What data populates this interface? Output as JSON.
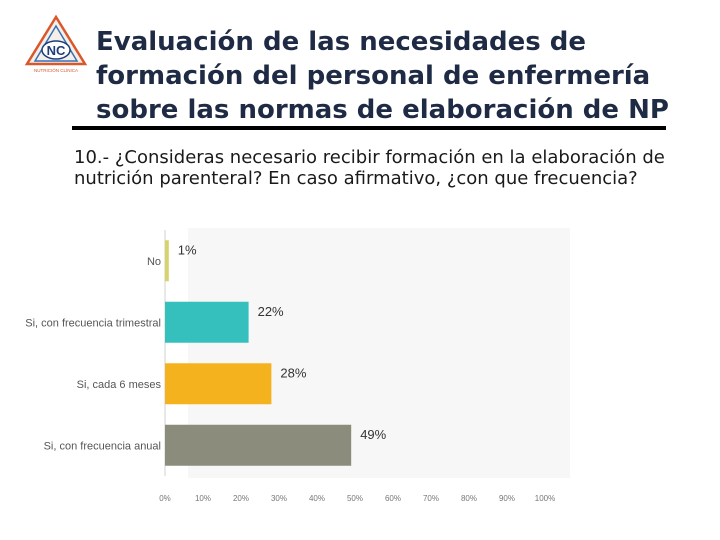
{
  "slide": {
    "title": "Evaluación de las necesidades de formación del personal de enfermería sobre las normas de elaboración de NP",
    "question": "10.- ¿Consideras necesario recibir formación en la elaboración de nutrición parenteral? En caso afirmativo, ¿con que frecuencia?",
    "logo": {
      "monogram": "NC",
      "caption": "NUTRICIÓN CLÍNICA",
      "icon": "triangle-logo-icon"
    }
  },
  "chart_data": {
    "type": "bar",
    "orientation": "horizontal",
    "categories": [
      "No",
      "Si, con frecuencia trimestral",
      "Si, cada 6 meses",
      "Si, con frecuencia anual"
    ],
    "values": [
      1,
      22,
      28,
      49
    ],
    "value_labels": [
      "1%",
      "22%",
      "28%",
      "49%"
    ],
    "colors": [
      "#d8d26a",
      "#36c0bd",
      "#f5b21f",
      "#8c8c7c"
    ],
    "xlim": [
      0,
      100
    ],
    "xticks": [
      "0%",
      "10%",
      "20%",
      "30%",
      "40%",
      "50%",
      "60%",
      "70%",
      "80%",
      "90%",
      "100%"
    ],
    "title": "",
    "xlabel": "",
    "ylabel": ""
  }
}
